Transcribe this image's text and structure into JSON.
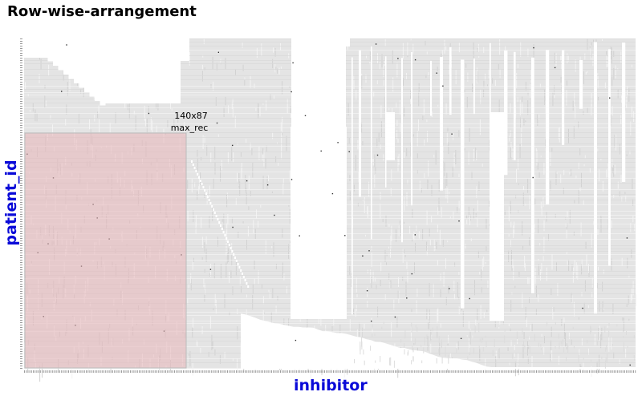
{
  "chart_data": {
    "type": "heatmap",
    "title": "Row-wise-arrangement",
    "xlabel": "inhibitor",
    "ylabel": "patient_id",
    "highlight": {
      "size_label": "140x87",
      "name": "max_rec",
      "rows": 87,
      "cols": 140,
      "color": "#e8b4b8"
    },
    "colors": {
      "observed": "#e4e4e4",
      "missing": "#ffffff",
      "dark_cell": "#333333",
      "axis_label": "#0a0ad8"
    }
  }
}
